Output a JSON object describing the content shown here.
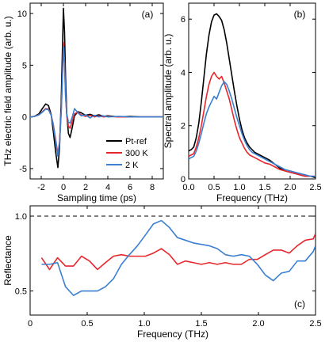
{
  "colors": {
    "ptref": "#000000",
    "k300": "#e8262c",
    "k2": "#3a7fd1",
    "axis": "#000000",
    "dashed": "#000000"
  },
  "chart_data": [
    {
      "id": "a",
      "type": "line",
      "panel_label": "(a)",
      "xlabel": "Sampling time (ps)",
      "ylabel": "THz electric field amplitude (arb. u.)",
      "xlim": [
        -3,
        9
      ],
      "ylim": [
        -6,
        11
      ],
      "xticks": [
        -2,
        0,
        2,
        4,
        6,
        8
      ],
      "yticks": [
        -5,
        0,
        5,
        10
      ],
      "legend_position": "lower-right",
      "series": [
        {
          "name": "Pt-ref",
          "color_key": "ptref",
          "x": [
            -3,
            -2.6,
            -2.2,
            -1.9,
            -1.6,
            -1.35,
            -1.1,
            -0.9,
            -0.7,
            -0.5,
            -0.35,
            -0.2,
            -0.1,
            0,
            0.1,
            0.2,
            0.3,
            0.45,
            0.6,
            0.8,
            1.0,
            1.3,
            1.6,
            2.0,
            2.4,
            2.8,
            3.2,
            3.6,
            4,
            5,
            6,
            7,
            8,
            9
          ],
          "y": [
            0,
            0.05,
            0.3,
            0.8,
            1.25,
            1.1,
            0.2,
            -1.5,
            -3.4,
            -4.9,
            -3.0,
            1.5,
            6.0,
            10.5,
            8.2,
            3.5,
            0.3,
            -1.6,
            -2.0,
            -1.0,
            0.1,
            0.5,
            0.4,
            0.15,
            0.25,
            0.1,
            0.2,
            0.05,
            0.1,
            0,
            0.05,
            0,
            0,
            0
          ]
        },
        {
          "name": "300 K",
          "color_key": "k300",
          "x": [
            -3,
            -2.6,
            -2.2,
            -1.9,
            -1.6,
            -1.35,
            -1.1,
            -0.9,
            -0.7,
            -0.5,
            -0.35,
            -0.2,
            -0.1,
            0,
            0.1,
            0.2,
            0.3,
            0.45,
            0.6,
            0.8,
            1.0,
            1.3,
            1.6,
            2.0,
            2.4,
            2.8,
            3.2,
            3.6,
            4,
            5,
            6,
            7,
            8,
            9
          ],
          "y": [
            0,
            0.05,
            0.2,
            0.5,
            0.8,
            0.75,
            0.15,
            -0.8,
            -2.2,
            -3.6,
            -2.4,
            0.5,
            3.6,
            7.2,
            5.4,
            2.0,
            0.2,
            -0.9,
            -1.1,
            -0.4,
            0.3,
            0.45,
            0.2,
            0.05,
            0.15,
            0,
            0.1,
            0,
            0.05,
            0,
            0,
            0,
            0,
            0
          ]
        },
        {
          "name": "2 K",
          "color_key": "k2",
          "x": [
            -3,
            -2.6,
            -2.2,
            -1.9,
            -1.6,
            -1.35,
            -1.1,
            -0.9,
            -0.7,
            -0.5,
            -0.35,
            -0.2,
            -0.1,
            0,
            0.1,
            0.2,
            0.3,
            0.45,
            0.6,
            0.8,
            1.0,
            1.3,
            1.6,
            2.0,
            2.4,
            2.8,
            3.2,
            3.6,
            4,
            5,
            6,
            7,
            8,
            9
          ],
          "y": [
            0,
            0.05,
            0.2,
            0.45,
            0.75,
            0.7,
            0.15,
            -0.9,
            -2.4,
            -3.8,
            -2.6,
            0.4,
            3.4,
            6.8,
            5.1,
            1.9,
            0.3,
            -0.5,
            -0.6,
            0.0,
            0.8,
            0.4,
            0.1,
            0.2,
            -0.1,
            0.15,
            0,
            0.1,
            0,
            0.05,
            0,
            0,
            0,
            0
          ]
        }
      ]
    },
    {
      "id": "b",
      "type": "line",
      "panel_label": "(b)",
      "xlabel": "Frequency (THz)",
      "ylabel": "Spectral amplitude (arb. u.)",
      "xlim": [
        0,
        2.5
      ],
      "ylim": [
        0,
        6.6
      ],
      "xticks": [
        0.0,
        0.5,
        1.0,
        1.5,
        2.0,
        2.5
      ],
      "xticklabels": [
        "0.0",
        "0.5",
        "1.0",
        "1.5",
        "2.0",
        "2.5"
      ],
      "yticks": [
        0,
        2,
        4,
        6
      ],
      "series": [
        {
          "name": "Pt-ref",
          "color_key": "ptref",
          "x": [
            0,
            0.05,
            0.1,
            0.15,
            0.2,
            0.25,
            0.3,
            0.35,
            0.4,
            0.45,
            0.5,
            0.55,
            0.6,
            0.65,
            0.7,
            0.75,
            0.8,
            0.85,
            0.9,
            0.95,
            1.0,
            1.05,
            1.1,
            1.15,
            1.2,
            1.25,
            1.3,
            1.4,
            1.5,
            1.6,
            1.7,
            1.8,
            1.9,
            2.0,
            2.1,
            2.2,
            2.3,
            2.4,
            2.5
          ],
          "y": [
            1.05,
            1.1,
            1.2,
            1.55,
            2.1,
            2.9,
            3.8,
            4.7,
            5.4,
            5.9,
            6.15,
            6.2,
            6.1,
            5.95,
            5.6,
            5.1,
            4.5,
            3.9,
            3.3,
            2.75,
            2.25,
            1.85,
            1.55,
            1.35,
            1.2,
            1.1,
            1.0,
            0.9,
            0.8,
            0.7,
            0.55,
            0.4,
            0.3,
            0.25,
            0.2,
            0.15,
            0.1,
            0.1,
            0.05
          ]
        },
        {
          "name": "300 K",
          "color_key": "k300",
          "x": [
            0,
            0.05,
            0.1,
            0.15,
            0.2,
            0.25,
            0.3,
            0.35,
            0.4,
            0.45,
            0.5,
            0.55,
            0.6,
            0.65,
            0.7,
            0.75,
            0.8,
            0.85,
            0.9,
            0.95,
            1.0,
            1.05,
            1.1,
            1.15,
            1.2,
            1.25,
            1.3,
            1.4,
            1.5,
            1.6,
            1.7,
            1.8,
            1.9,
            2.0,
            2.1,
            2.2,
            2.3,
            2.4,
            2.5
          ],
          "y": [
            0.85,
            0.9,
            0.95,
            1.2,
            1.55,
            2.0,
            2.55,
            3.1,
            3.55,
            3.85,
            4.0,
            3.85,
            3.75,
            3.85,
            3.6,
            3.3,
            3.0,
            2.6,
            2.2,
            1.85,
            1.55,
            1.35,
            1.15,
            1.0,
            0.9,
            0.85,
            0.8,
            0.7,
            0.6,
            0.55,
            0.45,
            0.35,
            0.3,
            0.25,
            0.2,
            0.15,
            0.1,
            0.1,
            0.1
          ]
        },
        {
          "name": "2 K",
          "color_key": "k2",
          "x": [
            0,
            0.05,
            0.1,
            0.15,
            0.2,
            0.25,
            0.3,
            0.35,
            0.4,
            0.45,
            0.5,
            0.55,
            0.6,
            0.65,
            0.7,
            0.75,
            0.8,
            0.85,
            0.9,
            0.95,
            1.0,
            1.05,
            1.1,
            1.15,
            1.2,
            1.25,
            1.3,
            1.4,
            1.5,
            1.6,
            1.7,
            1.8,
            1.9,
            2.0,
            2.1,
            2.2,
            2.3,
            2.4,
            2.5
          ],
          "y": [
            0.75,
            0.8,
            0.85,
            1.05,
            1.35,
            1.7,
            2.1,
            2.45,
            2.7,
            2.9,
            3.1,
            3.0,
            3.25,
            3.5,
            3.65,
            3.55,
            3.3,
            3.0,
            2.65,
            2.3,
            2.0,
            1.7,
            1.45,
            1.25,
            1.1,
            1.0,
            0.95,
            0.85,
            0.75,
            0.65,
            0.55,
            0.45,
            0.35,
            0.3,
            0.25,
            0.2,
            0.15,
            0.1,
            0.1
          ]
        }
      ]
    },
    {
      "id": "c",
      "type": "line",
      "panel_label": "(c)",
      "xlabel": "Frequency (THz)",
      "ylabel": "Reflectance",
      "xlim": [
        0,
        2.5
      ],
      "ylim": [
        0.4,
        1.1
      ],
      "log_y": true,
      "xticks": [
        0,
        0.5,
        1.0,
        1.5,
        2.0,
        2.5
      ],
      "xticklabels": [
        "0",
        "0.5",
        "1.0",
        "1.5",
        "2.0",
        "2.5"
      ],
      "yticks": [
        0.5,
        1.0
      ],
      "yticklabels": [
        "0.5",
        "1.0"
      ],
      "reference_line": {
        "y": 1.0,
        "style": "dashed"
      },
      "series": [
        {
          "name": "300 K",
          "color_key": "k300",
          "x": [
            0.1,
            0.17,
            0.24,
            0.31,
            0.38,
            0.45,
            0.52,
            0.59,
            0.66,
            0.73,
            0.8,
            0.87,
            0.94,
            1.01,
            1.08,
            1.15,
            1.22,
            1.29,
            1.36,
            1.43,
            1.5,
            1.57,
            1.64,
            1.71,
            1.78,
            1.85,
            1.92,
            1.99,
            2.06,
            2.13,
            2.2,
            2.27,
            2.34,
            2.41,
            2.48,
            2.5
          ],
          "y": [
            0.68,
            0.61,
            0.68,
            0.63,
            0.63,
            0.69,
            0.66,
            0.61,
            0.65,
            0.69,
            0.7,
            0.69,
            0.69,
            0.69,
            0.71,
            0.74,
            0.7,
            0.64,
            0.66,
            0.65,
            0.64,
            0.65,
            0.64,
            0.65,
            0.64,
            0.64,
            0.67,
            0.67,
            0.7,
            0.73,
            0.73,
            0.71,
            0.76,
            0.8,
            0.81,
            0.85
          ]
        },
        {
          "name": "2 K",
          "color_key": "k2",
          "x": [
            0.1,
            0.17,
            0.24,
            0.31,
            0.38,
            0.45,
            0.52,
            0.59,
            0.66,
            0.73,
            0.8,
            0.87,
            0.94,
            1.01,
            1.08,
            1.15,
            1.22,
            1.29,
            1.36,
            1.43,
            1.5,
            1.57,
            1.64,
            1.71,
            1.78,
            1.85,
            1.92,
            1.99,
            2.06,
            2.13,
            2.2,
            2.27,
            2.34,
            2.41,
            2.48,
            2.5
          ],
          "y": [
            0.64,
            0.64,
            0.65,
            0.52,
            0.48,
            0.5,
            0.5,
            0.5,
            0.52,
            0.56,
            0.64,
            0.7,
            0.76,
            0.84,
            0.93,
            0.96,
            0.9,
            0.82,
            0.8,
            0.78,
            0.77,
            0.76,
            0.74,
            0.7,
            0.69,
            0.7,
            0.69,
            0.64,
            0.58,
            0.55,
            0.59,
            0.6,
            0.66,
            0.66,
            0.72,
            0.76
          ]
        }
      ]
    }
  ]
}
